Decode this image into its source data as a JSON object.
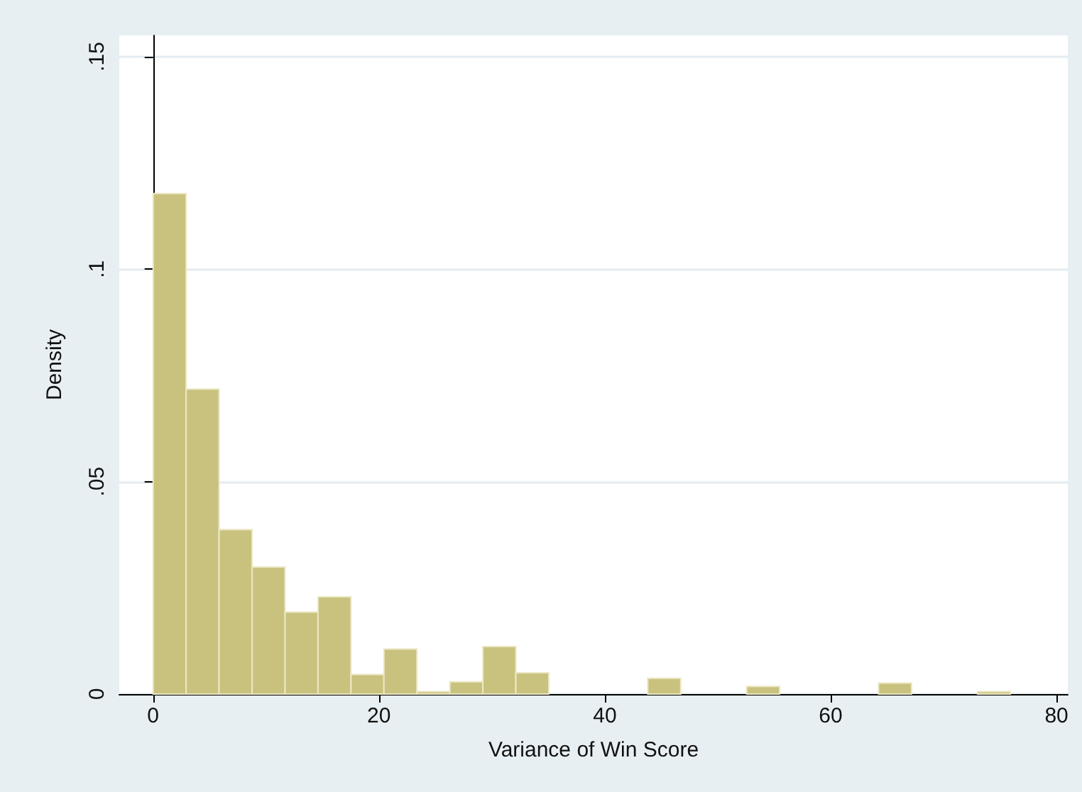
{
  "chart_data": {
    "type": "histogram",
    "xlabel": "Variance of Win Score",
    "ylabel": "Density",
    "bins": [
      0,
      2.92,
      5.84,
      8.76,
      11.68,
      14.6,
      17.52,
      20.44,
      23.36,
      26.28,
      29.2,
      32.12,
      35.04,
      37.96,
      40.88,
      43.8,
      46.72,
      49.64,
      52.56,
      55.48,
      58.4,
      61.32,
      64.24,
      67.16,
      70.08,
      73,
      75.92
    ],
    "values": [
      0.1178,
      0.0718,
      0.0387,
      0.0299,
      0.0193,
      0.0229,
      0.0046,
      0.0106,
      0.0006,
      0.0029,
      0.0112,
      0.005,
      0,
      0,
      0,
      0.0037,
      0,
      0,
      0.0018,
      0,
      0,
      0,
      0.0026,
      0,
      0,
      0.0006
    ],
    "color": "#c9c27e",
    "xlim": [
      -3,
      81
    ],
    "xticks": [
      0,
      20,
      40,
      60,
      80
    ],
    "ylim": [
      0,
      0.155
    ],
    "yticks": [
      {
        "value": 0,
        "label": "0"
      },
      {
        "value": 0.05,
        "label": ".05"
      },
      {
        "value": 0.1,
        "label": ".1"
      },
      {
        "value": 0.15,
        "label": ".15"
      }
    ],
    "grid": "y"
  }
}
